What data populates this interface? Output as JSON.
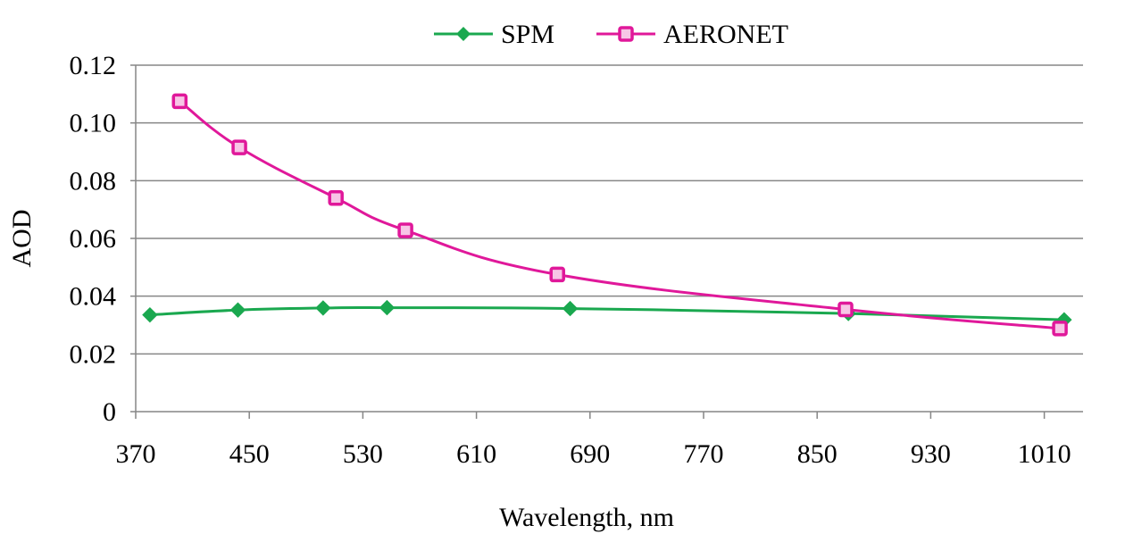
{
  "chart_data": {
    "type": "line",
    "title": "",
    "xlabel": "Wavelength, nm",
    "ylabel": "AOD",
    "xlim": [
      370,
      1040
    ],
    "ylim": [
      0,
      0.12
    ],
    "x_ticks": [
      "370",
      "450",
      "530",
      "610",
      "690",
      "770",
      "850",
      "930",
      "1010"
    ],
    "y_ticks": [
      "0",
      "0.02",
      "0.04",
      "0.06",
      "0.08",
      "0.10",
      "0.12"
    ],
    "grid": true,
    "legend_position": "top-center",
    "series": [
      {
        "name": "SPM",
        "color": "#1aa84f",
        "marker": "diamond",
        "x": [
          380,
          442,
          502,
          547,
          676,
          872,
          1024
        ],
        "y": [
          0.0335,
          0.0352,
          0.0359,
          0.036,
          0.0357,
          0.034,
          0.0318
        ]
      },
      {
        "name": "AERONET",
        "color": "#e0189a",
        "marker": "square",
        "x": [
          401,
          443,
          511,
          560,
          667,
          870,
          1021
        ],
        "y": [
          0.1075,
          0.0915,
          0.074,
          0.0628,
          0.0475,
          0.0354,
          0.0288
        ]
      }
    ]
  }
}
